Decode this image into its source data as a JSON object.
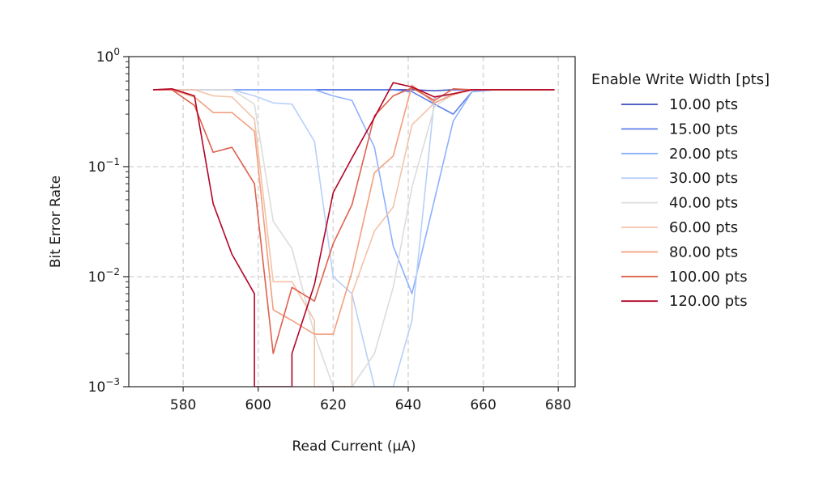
{
  "chart_data": {
    "type": "line",
    "xlabel": "Read Current (μA)",
    "ylabel": "Bit Error Rate",
    "xlim": [
      565.5,
      684.5
    ],
    "ylim": [
      0.001,
      1
    ],
    "yscale": "log",
    "grid": true,
    "legend_title": "Enable Write Width [pts]",
    "legend_placement": "outside-right",
    "x_ticks": [
      580,
      600,
      620,
      640,
      660,
      680
    ],
    "x_tick_labels": [
      "580",
      "600",
      "620",
      "640",
      "660",
      "680"
    ],
    "y_ticks": [
      0.001,
      0.01,
      0.1,
      1
    ],
    "y_tick_base": "10",
    "y_tick_exponents": [
      "−3",
      "−2",
      "−1",
      "0"
    ],
    "series": [
      {
        "name": "10.00 pts",
        "color": "#3b4cc0",
        "points": [
          [
            572,
            0.5
          ],
          [
            577,
            0.5
          ],
          [
            583,
            0.5
          ],
          [
            588,
            0.5
          ],
          [
            593,
            0.5
          ],
          [
            599,
            0.5
          ],
          [
            604,
            0.5
          ],
          [
            609,
            0.5
          ],
          [
            615,
            0.5
          ],
          [
            620,
            0.5
          ],
          [
            625,
            0.5
          ],
          [
            631,
            0.5
          ],
          [
            636,
            0.5
          ],
          [
            641,
            0.5
          ],
          [
            647,
            0.49
          ],
          [
            652,
            0.5
          ],
          [
            657,
            0.5
          ],
          [
            663,
            0.5
          ],
          [
            668,
            0.5
          ],
          [
            673,
            0.5
          ],
          [
            679,
            0.5
          ]
        ]
      },
      {
        "name": "15.00 pts",
        "color": "#5f7fe8",
        "points": [
          [
            572,
            0.5
          ],
          [
            577,
            0.5
          ],
          [
            583,
            0.5
          ],
          [
            588,
            0.5
          ],
          [
            593,
            0.5
          ],
          [
            599,
            0.5
          ],
          [
            604,
            0.5
          ],
          [
            609,
            0.5
          ],
          [
            615,
            0.5
          ],
          [
            620,
            0.5
          ],
          [
            625,
            0.5
          ],
          [
            631,
            0.5
          ],
          [
            636,
            0.5
          ],
          [
            641,
            0.48
          ],
          [
            647,
            0.37
          ],
          [
            652,
            0.3
          ],
          [
            657,
            0.48
          ],
          [
            663,
            0.5
          ],
          [
            668,
            0.5
          ],
          [
            673,
            0.5
          ],
          [
            679,
            0.5
          ]
        ]
      },
      {
        "name": "20.00 pts",
        "color": "#8db0fe",
        "points": [
          [
            572,
            0.5
          ],
          [
            577,
            0.5
          ],
          [
            583,
            0.5
          ],
          [
            588,
            0.5
          ],
          [
            593,
            0.5
          ],
          [
            599,
            0.5
          ],
          [
            604,
            0.5
          ],
          [
            609,
            0.5
          ],
          [
            615,
            0.5
          ],
          [
            620,
            0.44
          ],
          [
            625,
            0.4
          ],
          [
            631,
            0.15
          ],
          [
            636,
            0.019
          ],
          [
            641,
            0.007
          ],
          [
            647,
            0.05
          ],
          [
            652,
            0.26
          ],
          [
            657,
            0.48
          ],
          [
            663,
            0.5
          ],
          [
            668,
            0.5
          ],
          [
            673,
            0.5
          ],
          [
            679,
            0.5
          ]
        ]
      },
      {
        "name": "30.00 pts",
        "color": "#b8d0f9",
        "points": [
          [
            572,
            0.5
          ],
          [
            577,
            0.5
          ],
          [
            583,
            0.5
          ],
          [
            588,
            0.5
          ],
          [
            593,
            0.5
          ],
          [
            599,
            0.44
          ],
          [
            604,
            0.38
          ],
          [
            609,
            0.37
          ],
          [
            615,
            0.17
          ],
          [
            620,
            0.01
          ],
          [
            625,
            0.007
          ],
          [
            631,
            0.001
          ],
          [
            636,
            0.001
          ],
          [
            641,
            0.004
          ],
          [
            647,
            0.42
          ],
          [
            652,
            0.46
          ],
          [
            657,
            0.5
          ],
          [
            663,
            0.5
          ],
          [
            668,
            0.5
          ],
          [
            673,
            0.5
          ],
          [
            679,
            0.5
          ]
        ]
      },
      {
        "name": "40.00 pts",
        "color": "#dddcdc",
        "points": [
          [
            572,
            0.5
          ],
          [
            577,
            0.5
          ],
          [
            583,
            0.5
          ],
          [
            588,
            0.5
          ],
          [
            593,
            0.5
          ],
          [
            599,
            0.37
          ],
          [
            604,
            0.032
          ],
          [
            609,
            0.018
          ],
          [
            615,
            0.003
          ],
          [
            620,
            0.001
          ],
          [
            625,
            0.001
          ],
          [
            631,
            0.002
          ],
          [
            636,
            0.008
          ],
          [
            641,
            0.065
          ],
          [
            647,
            0.35
          ],
          [
            652,
            0.46
          ],
          [
            657,
            0.5
          ],
          [
            663,
            0.5
          ],
          [
            668,
            0.5
          ],
          [
            673,
            0.5
          ],
          [
            679,
            0.5
          ]
        ]
      },
      {
        "name": "60.00 pts",
        "color": "#f2c3a9",
        "points": [
          [
            572,
            0.5
          ],
          [
            577,
            0.5
          ],
          [
            583,
            0.5
          ],
          [
            588,
            0.44
          ],
          [
            593,
            0.43
          ],
          [
            599,
            0.27
          ],
          [
            604,
            0.009
          ],
          [
            609,
            0.009
          ],
          [
            615,
            0.004
          ],
          [
            615,
            0.001
          ],
          [
            625,
            0.001
          ],
          [
            625,
            0.007
          ],
          [
            631,
            0.026
          ],
          [
            636,
            0.043
          ],
          [
            641,
            0.24
          ],
          [
            647,
            0.38
          ],
          [
            652,
            0.46
          ],
          [
            657,
            0.5
          ],
          [
            663,
            0.5
          ],
          [
            668,
            0.5
          ],
          [
            673,
            0.5
          ],
          [
            679,
            0.5
          ]
        ]
      },
      {
        "name": "80.00 pts",
        "color": "#f39f7f",
        "points": [
          [
            572,
            0.5
          ],
          [
            577,
            0.5
          ],
          [
            583,
            0.43
          ],
          [
            588,
            0.31
          ],
          [
            593,
            0.31
          ],
          [
            599,
            0.21
          ],
          [
            604,
            0.005
          ],
          [
            609,
            0.004
          ],
          [
            615,
            0.003
          ],
          [
            620,
            0.003
          ],
          [
            625,
            0.011
          ],
          [
            631,
            0.088
          ],
          [
            636,
            0.125
          ],
          [
            641,
            0.55
          ],
          [
            647,
            0.38
          ],
          [
            652,
            0.45
          ],
          [
            657,
            0.5
          ],
          [
            663,
            0.5
          ],
          [
            668,
            0.5
          ],
          [
            673,
            0.5
          ],
          [
            679,
            0.5
          ]
        ]
      },
      {
        "name": "100.00 pts",
        "color": "#de614d",
        "points": [
          [
            572,
            0.5
          ],
          [
            577,
            0.5
          ],
          [
            583,
            0.36
          ],
          [
            588,
            0.135
          ],
          [
            593,
            0.15
          ],
          [
            599,
            0.07
          ],
          [
            604,
            0.002
          ],
          [
            609,
            0.008
          ],
          [
            615,
            0.006
          ],
          [
            620,
            0.02
          ],
          [
            625,
            0.045
          ],
          [
            631,
            0.29
          ],
          [
            636,
            0.44
          ],
          [
            641,
            0.52
          ],
          [
            647,
            0.4
          ],
          [
            652,
            0.51
          ],
          [
            657,
            0.5
          ],
          [
            663,
            0.5
          ],
          [
            668,
            0.5
          ],
          [
            673,
            0.5
          ],
          [
            679,
            0.5
          ]
        ]
      },
      {
        "name": "120.00 pts",
        "color": "#b40426",
        "points": [
          [
            572,
            0.5
          ],
          [
            577,
            0.51
          ],
          [
            583,
            0.44
          ],
          [
            588,
            0.046
          ],
          [
            593,
            0.016
          ],
          [
            599,
            0.007
          ],
          [
            599,
            0.001
          ],
          [
            609,
            0.001
          ],
          [
            609,
            0.002
          ],
          [
            615,
            0.0085
          ],
          [
            620,
            0.058
          ],
          [
            625,
            0.12
          ],
          [
            631,
            0.28
          ],
          [
            636,
            0.58
          ],
          [
            641,
            0.53
          ],
          [
            647,
            0.43
          ],
          [
            652,
            0.46
          ],
          [
            657,
            0.5
          ],
          [
            663,
            0.5
          ],
          [
            668,
            0.5
          ],
          [
            673,
            0.5
          ],
          [
            679,
            0.5
          ]
        ]
      }
    ]
  }
}
